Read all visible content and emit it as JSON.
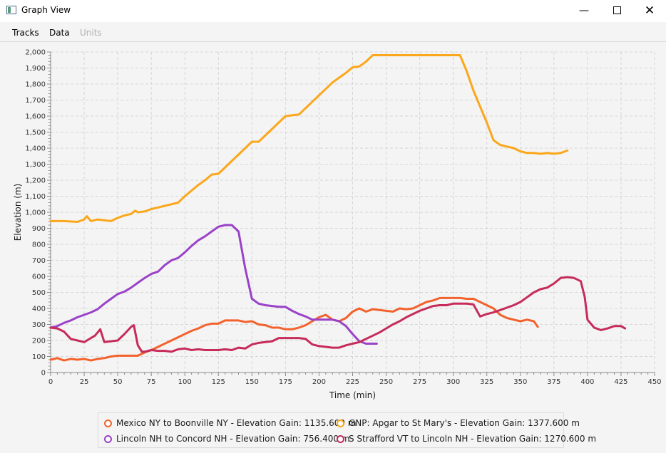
{
  "window": {
    "title": "Graph View",
    "minimize_icon": "minimize-icon",
    "maximize_icon": "maximize-icon",
    "close_icon": "close-icon"
  },
  "menu": {
    "items": [
      {
        "label": "Tracks",
        "enabled": true
      },
      {
        "label": "Data",
        "enabled": true
      },
      {
        "label": "Units",
        "enabled": false
      }
    ]
  },
  "chart_data": {
    "type": "line",
    "xlabel": "Time (min)",
    "ylabel": "Elevation (m)",
    "xlim": [
      0,
      450
    ],
    "ylim": [
      0,
      2000
    ],
    "xticks": [
      0,
      25,
      50,
      75,
      100,
      125,
      150,
      175,
      200,
      225,
      250,
      275,
      300,
      325,
      350,
      375,
      400,
      425,
      450
    ],
    "yticks": [
      0,
      100,
      200,
      300,
      400,
      500,
      600,
      700,
      800,
      900,
      1000,
      1100,
      1200,
      1300,
      1400,
      1500,
      1600,
      1700,
      1800,
      1900,
      2000
    ],
    "ytick_labels": [
      "0",
      "100",
      "200",
      "300",
      "400",
      "500",
      "600",
      "700",
      "800",
      "900",
      "1,000",
      "1,100",
      "1,200",
      "1,300",
      "1,400",
      "1,500",
      "1,600",
      "1,700",
      "1,800",
      "1,900",
      "2,000"
    ],
    "grid": true,
    "legend_position": "bottom",
    "series": [
      {
        "name": "Mexico NY to Boonville NY - Elevation Gain: 1135.600 m",
        "color": "#f3622d",
        "points": [
          [
            0,
            80
          ],
          [
            5,
            90
          ],
          [
            10,
            75
          ],
          [
            15,
            85
          ],
          [
            20,
            80
          ],
          [
            25,
            85
          ],
          [
            30,
            75
          ],
          [
            35,
            85
          ],
          [
            40,
            90
          ],
          [
            45,
            100
          ],
          [
            50,
            105
          ],
          [
            55,
            105
          ],
          [
            60,
            105
          ],
          [
            65,
            105
          ],
          [
            70,
            125
          ],
          [
            75,
            140
          ],
          [
            80,
            160
          ],
          [
            85,
            180
          ],
          [
            90,
            200
          ],
          [
            95,
            220
          ],
          [
            100,
            240
          ],
          [
            105,
            260
          ],
          [
            110,
            275
          ],
          [
            115,
            295
          ],
          [
            120,
            305
          ],
          [
            125,
            305
          ],
          [
            130,
            325
          ],
          [
            135,
            325
          ],
          [
            140,
            325
          ],
          [
            145,
            315
          ],
          [
            150,
            320
          ],
          [
            155,
            300
          ],
          [
            160,
            295
          ],
          [
            165,
            280
          ],
          [
            170,
            280
          ],
          [
            175,
            270
          ],
          [
            180,
            270
          ],
          [
            185,
            280
          ],
          [
            190,
            295
          ],
          [
            195,
            320
          ],
          [
            200,
            345
          ],
          [
            205,
            360
          ],
          [
            210,
            330
          ],
          [
            215,
            320
          ],
          [
            220,
            340
          ],
          [
            225,
            380
          ],
          [
            230,
            400
          ],
          [
            235,
            380
          ],
          [
            240,
            395
          ],
          [
            245,
            390
          ],
          [
            250,
            385
          ],
          [
            255,
            380
          ],
          [
            260,
            400
          ],
          [
            265,
            395
          ],
          [
            270,
            400
          ],
          [
            275,
            420
          ],
          [
            280,
            440
          ],
          [
            285,
            450
          ],
          [
            290,
            465
          ],
          [
            295,
            465
          ],
          [
            300,
            465
          ],
          [
            305,
            465
          ],
          [
            310,
            460
          ],
          [
            315,
            460
          ],
          [
            320,
            440
          ],
          [
            325,
            420
          ],
          [
            330,
            400
          ],
          [
            335,
            360
          ],
          [
            340,
            340
          ],
          [
            345,
            330
          ],
          [
            350,
            320
          ],
          [
            355,
            330
          ],
          [
            360,
            320
          ],
          [
            363,
            285
          ]
        ]
      },
      {
        "name": "GNP: Apgar to St Mary's - Elevation Gain: 1377.600 m",
        "color": "#fba71b",
        "points": [
          [
            0,
            945
          ],
          [
            10,
            945
          ],
          [
            20,
            940
          ],
          [
            25,
            955
          ],
          [
            27,
            975
          ],
          [
            30,
            945
          ],
          [
            35,
            955
          ],
          [
            40,
            950
          ],
          [
            45,
            945
          ],
          [
            50,
            965
          ],
          [
            55,
            980
          ],
          [
            60,
            990
          ],
          [
            63,
            1010
          ],
          [
            65,
            1000
          ],
          [
            70,
            1005
          ],
          [
            75,
            1020
          ],
          [
            80,
            1030
          ],
          [
            85,
            1040
          ],
          [
            90,
            1050
          ],
          [
            95,
            1060
          ],
          [
            100,
            1100
          ],
          [
            105,
            1135
          ],
          [
            110,
            1170
          ],
          [
            115,
            1200
          ],
          [
            120,
            1235
          ],
          [
            125,
            1240
          ],
          [
            130,
            1280
          ],
          [
            135,
            1320
          ],
          [
            140,
            1360
          ],
          [
            145,
            1400
          ],
          [
            150,
            1440
          ],
          [
            155,
            1440
          ],
          [
            160,
            1480
          ],
          [
            165,
            1520
          ],
          [
            170,
            1560
          ],
          [
            175,
            1600
          ],
          [
            180,
            1605
          ],
          [
            185,
            1610
          ],
          [
            190,
            1650
          ],
          [
            195,
            1690
          ],
          [
            200,
            1730
          ],
          [
            205,
            1770
          ],
          [
            210,
            1810
          ],
          [
            215,
            1840
          ],
          [
            220,
            1870
          ],
          [
            225,
            1905
          ],
          [
            230,
            1910
          ],
          [
            235,
            1940
          ],
          [
            240,
            1980
          ],
          [
            245,
            1980
          ],
          [
            250,
            1980
          ],
          [
            260,
            1980
          ],
          [
            270,
            1980
          ],
          [
            280,
            1980
          ],
          [
            290,
            1980
          ],
          [
            300,
            1980
          ],
          [
            305,
            1980
          ],
          [
            310,
            1880
          ],
          [
            315,
            1760
          ],
          [
            320,
            1660
          ],
          [
            325,
            1560
          ],
          [
            330,
            1450
          ],
          [
            335,
            1420
          ],
          [
            340,
            1410
          ],
          [
            345,
            1400
          ],
          [
            350,
            1380
          ],
          [
            355,
            1370
          ],
          [
            360,
            1370
          ],
          [
            365,
            1365
          ],
          [
            370,
            1370
          ],
          [
            375,
            1365
          ],
          [
            380,
            1370
          ],
          [
            385,
            1385
          ]
        ]
      },
      {
        "name": "Lincoln NH to Concord NH - Elevation Gain: 756.400 m",
        "color": "#9a42c8",
        "points": [
          [
            0,
            280
          ],
          [
            5,
            290
          ],
          [
            10,
            310
          ],
          [
            15,
            325
          ],
          [
            20,
            345
          ],
          [
            25,
            360
          ],
          [
            30,
            375
          ],
          [
            35,
            395
          ],
          [
            40,
            430
          ],
          [
            45,
            460
          ],
          [
            50,
            490
          ],
          [
            55,
            505
          ],
          [
            60,
            530
          ],
          [
            65,
            560
          ],
          [
            70,
            590
          ],
          [
            75,
            615
          ],
          [
            80,
            630
          ],
          [
            85,
            670
          ],
          [
            90,
            700
          ],
          [
            95,
            715
          ],
          [
            100,
            750
          ],
          [
            105,
            790
          ],
          [
            110,
            825
          ],
          [
            115,
            850
          ],
          [
            120,
            880
          ],
          [
            125,
            910
          ],
          [
            130,
            920
          ],
          [
            135,
            920
          ],
          [
            140,
            880
          ],
          [
            145,
            650
          ],
          [
            150,
            460
          ],
          [
            155,
            430
          ],
          [
            160,
            420
          ],
          [
            165,
            415
          ],
          [
            170,
            410
          ],
          [
            175,
            410
          ],
          [
            180,
            385
          ],
          [
            185,
            365
          ],
          [
            190,
            350
          ],
          [
            195,
            330
          ],
          [
            200,
            330
          ],
          [
            205,
            330
          ],
          [
            210,
            330
          ],
          [
            215,
            320
          ],
          [
            220,
            290
          ],
          [
            225,
            240
          ],
          [
            230,
            195
          ],
          [
            235,
            180
          ],
          [
            240,
            180
          ],
          [
            243,
            180
          ]
        ]
      },
      {
        "name": "S Strafford VT to Lincoln NH - Elevation Gain: 1270.600 m",
        "color": "#c62b5a",
        "points": [
          [
            0,
            280
          ],
          [
            5,
            275
          ],
          [
            10,
            255
          ],
          [
            15,
            210
          ],
          [
            20,
            200
          ],
          [
            25,
            190
          ],
          [
            30,
            215
          ],
          [
            33,
            230
          ],
          [
            35,
            250
          ],
          [
            37,
            270
          ],
          [
            40,
            190
          ],
          [
            45,
            195
          ],
          [
            50,
            200
          ],
          [
            55,
            240
          ],
          [
            60,
            285
          ],
          [
            62,
            295
          ],
          [
            65,
            170
          ],
          [
            68,
            130
          ],
          [
            70,
            130
          ],
          [
            75,
            140
          ],
          [
            80,
            135
          ],
          [
            85,
            135
          ],
          [
            90,
            130
          ],
          [
            95,
            145
          ],
          [
            100,
            150
          ],
          [
            105,
            140
          ],
          [
            110,
            145
          ],
          [
            115,
            140
          ],
          [
            120,
            140
          ],
          [
            125,
            140
          ],
          [
            130,
            145
          ],
          [
            135,
            140
          ],
          [
            140,
            155
          ],
          [
            145,
            150
          ],
          [
            150,
            175
          ],
          [
            155,
            185
          ],
          [
            160,
            190
          ],
          [
            165,
            195
          ],
          [
            170,
            215
          ],
          [
            175,
            215
          ],
          [
            180,
            215
          ],
          [
            185,
            215
          ],
          [
            190,
            210
          ],
          [
            195,
            175
          ],
          [
            200,
            165
          ],
          [
            205,
            160
          ],
          [
            210,
            155
          ],
          [
            215,
            155
          ],
          [
            220,
            170
          ],
          [
            225,
            180
          ],
          [
            230,
            190
          ],
          [
            235,
            210
          ],
          [
            240,
            230
          ],
          [
            245,
            250
          ],
          [
            250,
            275
          ],
          [
            255,
            300
          ],
          [
            260,
            320
          ],
          [
            265,
            345
          ],
          [
            270,
            365
          ],
          [
            275,
            385
          ],
          [
            280,
            400
          ],
          [
            285,
            415
          ],
          [
            290,
            420
          ],
          [
            295,
            420
          ],
          [
            300,
            430
          ],
          [
            305,
            430
          ],
          [
            310,
            430
          ],
          [
            315,
            425
          ],
          [
            320,
            350
          ],
          [
            325,
            365
          ],
          [
            330,
            375
          ],
          [
            335,
            390
          ],
          [
            340,
            405
          ],
          [
            345,
            420
          ],
          [
            350,
            440
          ],
          [
            355,
            470
          ],
          [
            360,
            500
          ],
          [
            365,
            520
          ],
          [
            370,
            530
          ],
          [
            375,
            555
          ],
          [
            380,
            590
          ],
          [
            385,
            595
          ],
          [
            390,
            590
          ],
          [
            395,
            570
          ],
          [
            398,
            470
          ],
          [
            400,
            330
          ],
          [
            405,
            280
          ],
          [
            410,
            265
          ],
          [
            415,
            275
          ],
          [
            420,
            290
          ],
          [
            425,
            290
          ],
          [
            428,
            275
          ]
        ]
      }
    ]
  }
}
